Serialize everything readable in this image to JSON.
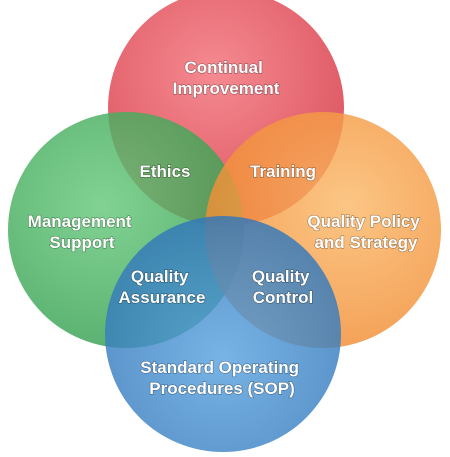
{
  "circles": {
    "top": {
      "lines": [
        "Continual",
        "Improvement"
      ],
      "color": "#e8505b"
    },
    "left": {
      "lines": [
        "Management",
        "Support"
      ],
      "color": "#3fae5b"
    },
    "right": {
      "lines": [
        "Quality Policy",
        "and Strategy"
      ],
      "color": "#f79a3e"
    },
    "bottom": {
      "lines": [
        "Standard Operating",
        "Procedures (SOP)"
      ],
      "color": "#3b86c9"
    }
  },
  "overlaps": {
    "top_left": {
      "lines": [
        "Ethics"
      ]
    },
    "top_right": {
      "lines": [
        "Training"
      ]
    },
    "left_bottom": {
      "lines": [
        "Quality",
        "Assurance"
      ]
    },
    "right_bottom": {
      "lines": [
        "Quality",
        "Control"
      ]
    }
  }
}
